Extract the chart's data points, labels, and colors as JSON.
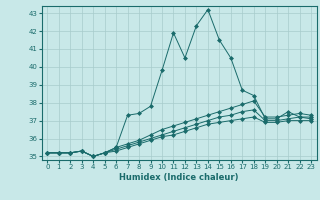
{
  "xlabel": "Humidex (Indice chaleur)",
  "xlim": [
    -0.5,
    23.5
  ],
  "ylim": [
    34.8,
    43.4
  ],
  "yticks": [
    35,
    36,
    37,
    38,
    39,
    40,
    41,
    42,
    43
  ],
  "xticks": [
    0,
    1,
    2,
    3,
    4,
    5,
    6,
    7,
    8,
    9,
    10,
    11,
    12,
    13,
    14,
    15,
    16,
    17,
    18,
    19,
    20,
    21,
    22,
    23
  ],
  "bg_color": "#c8e8e8",
  "line_color": "#1a6b6b",
  "grid_color": "#a8cccc",
  "series": [
    {
      "x": [
        0,
        1,
        2,
        3,
        4,
        5,
        6,
        7,
        8,
        9,
        10,
        11,
        12,
        13,
        14,
        15,
        16,
        17,
        18,
        19,
        20,
        21,
        22,
        23
      ],
      "y": [
        35.2,
        35.2,
        35.2,
        35.3,
        35.0,
        35.2,
        35.5,
        37.3,
        37.4,
        37.8,
        39.8,
        41.9,
        40.5,
        42.3,
        43.2,
        41.5,
        40.5,
        38.7,
        38.4,
        37.1,
        37.1,
        37.5,
        37.2,
        37.2
      ],
      "marker": "D",
      "markersize": 2.0
    },
    {
      "x": [
        0,
        1,
        2,
        3,
        4,
        5,
        6,
        7,
        8,
        9,
        10,
        11,
        12,
        13,
        14,
        15,
        16,
        17,
        18,
        19,
        20,
        21,
        22,
        23
      ],
      "y": [
        35.2,
        35.2,
        35.2,
        35.3,
        35.0,
        35.2,
        35.5,
        35.7,
        35.9,
        36.2,
        36.5,
        36.7,
        36.9,
        37.1,
        37.3,
        37.5,
        37.7,
        37.9,
        38.1,
        37.2,
        37.2,
        37.3,
        37.4,
        37.3
      ],
      "marker": "D",
      "markersize": 2.0
    },
    {
      "x": [
        0,
        1,
        2,
        3,
        4,
        5,
        6,
        7,
        8,
        9,
        10,
        11,
        12,
        13,
        14,
        15,
        16,
        17,
        18,
        19,
        20,
        21,
        22,
        23
      ],
      "y": [
        35.2,
        35.2,
        35.2,
        35.3,
        35.0,
        35.2,
        35.4,
        35.6,
        35.8,
        36.0,
        36.2,
        36.4,
        36.6,
        36.8,
        37.0,
        37.2,
        37.3,
        37.5,
        37.6,
        37.0,
        37.0,
        37.1,
        37.2,
        37.1
      ],
      "marker": "D",
      "markersize": 2.0
    },
    {
      "x": [
        0,
        1,
        2,
        3,
        4,
        5,
        6,
        7,
        8,
        9,
        10,
        11,
        12,
        13,
        14,
        15,
        16,
        17,
        18,
        19,
        20,
        21,
        22,
        23
      ],
      "y": [
        35.2,
        35.2,
        35.2,
        35.3,
        35.0,
        35.2,
        35.3,
        35.5,
        35.7,
        35.9,
        36.1,
        36.2,
        36.4,
        36.6,
        36.8,
        36.9,
        37.0,
        37.1,
        37.2,
        36.9,
        36.9,
        37.0,
        37.0,
        37.0
      ],
      "marker": "D",
      "markersize": 2.0
    }
  ]
}
